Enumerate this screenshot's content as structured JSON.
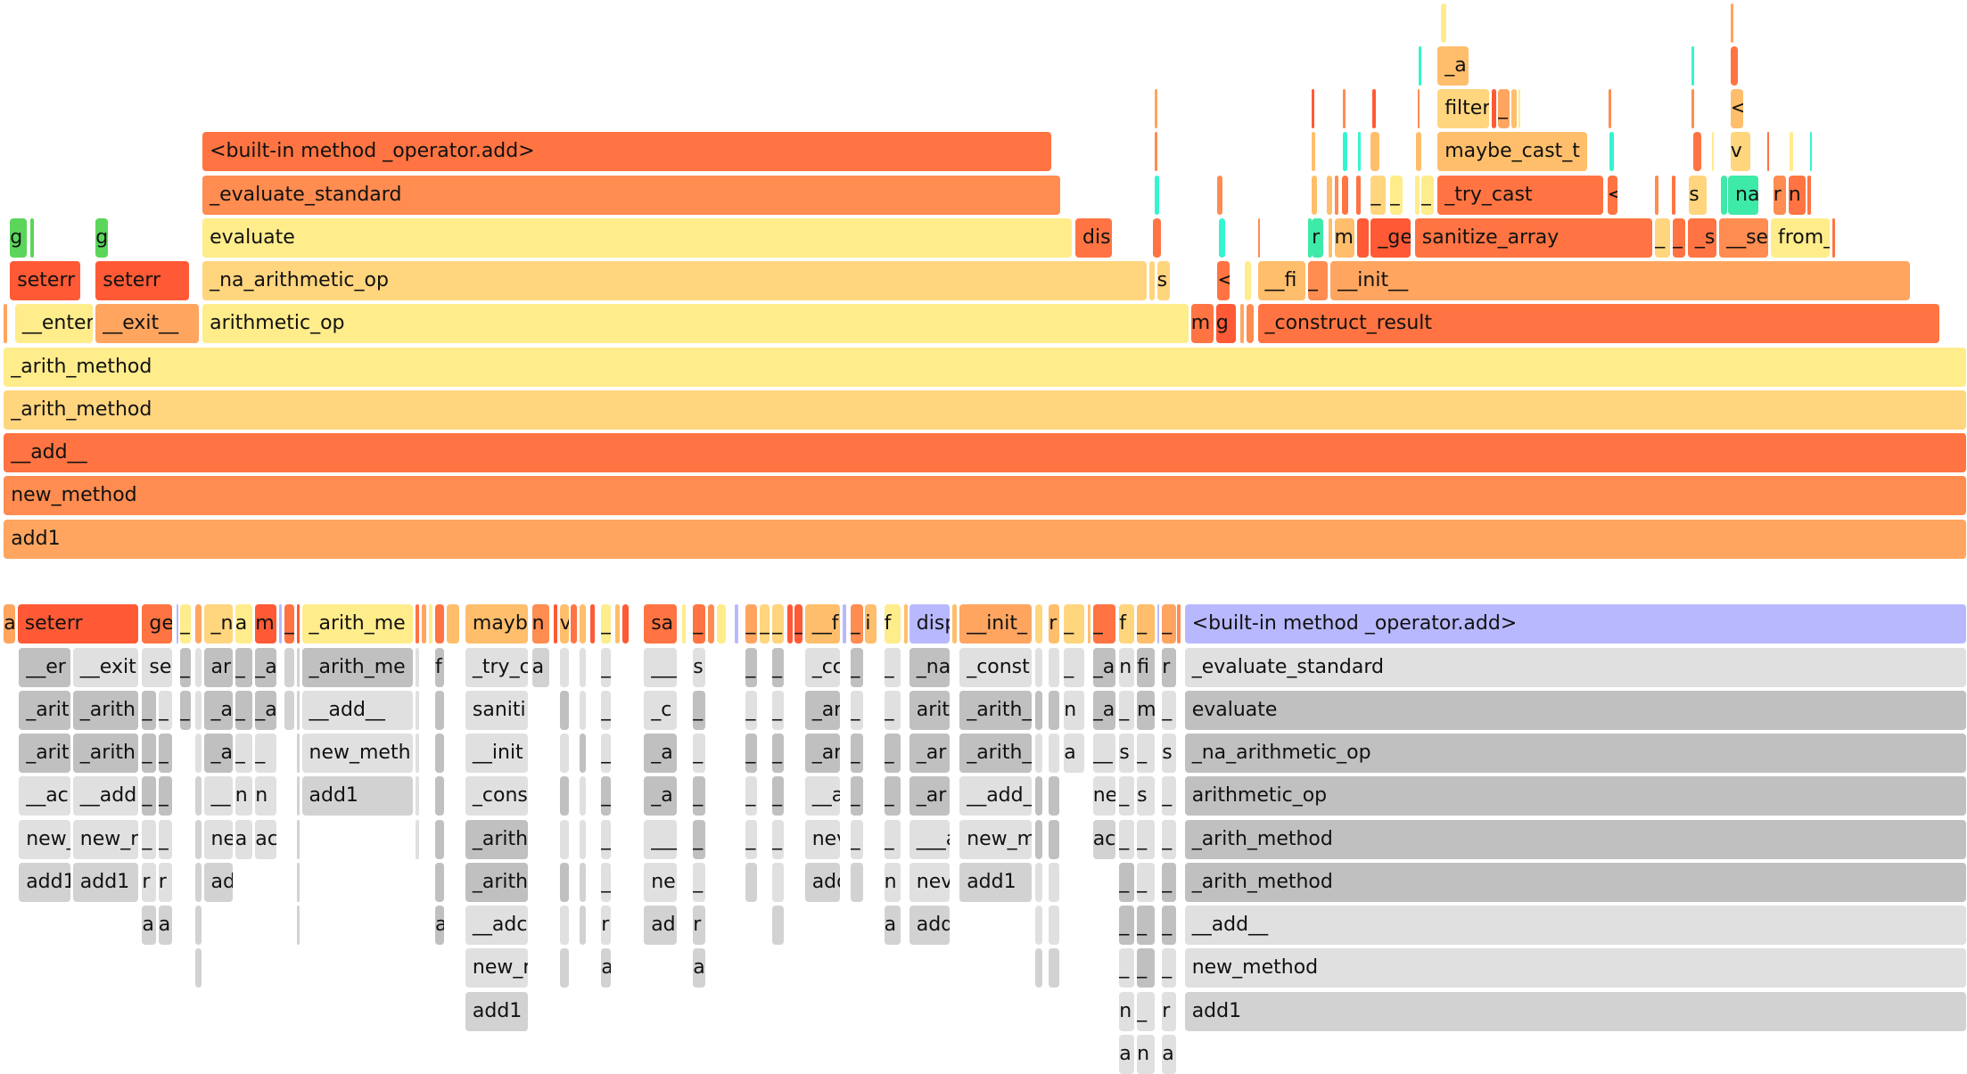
{
  "palette": {
    "Y": "#FFEC8B",
    "Y2": "#FFD57E",
    "O1": "#FFBE6B",
    "O2": "#FFA560",
    "O3": "#FF8C50",
    "O4": "#FF7442",
    "R": "#FF5A35",
    "G": "#5BD65B",
    "C": "#33F5D0",
    "T": "#3EEAA8",
    "P": "#B8B8FF",
    "L": "#E0E0E0",
    "M": "#D2D2D2",
    "D": "#C0C0C0"
  },
  "top_frames": [
    [
      "add1",
      "O2"
    ],
    [
      "new_method",
      "O3"
    ],
    [
      "__add__",
      "O4"
    ],
    [
      "_arith_method",
      "Y2"
    ],
    [
      "_arith_method",
      "Y"
    ],
    [
      "",
      "O2"
    ],
    [
      "__enter__",
      "Y"
    ],
    [
      "__exit__",
      "O2"
    ],
    [
      "arithmetic_op",
      "Y"
    ],
    [
      "m",
      "O4"
    ],
    [
      "g",
      "R"
    ],
    [
      "",
      "O2"
    ],
    [
      "",
      "O3"
    ],
    [
      "_construct_result",
      "O4"
    ],
    [
      "seterr",
      "R"
    ],
    [
      "seterr",
      "R"
    ],
    [
      "_na_arithmetic_op",
      "Y2"
    ],
    [
      "",
      "Y2"
    ],
    [
      "s",
      "Y2"
    ],
    [
      "<",
      "O4"
    ],
    [
      "",
      "Y"
    ],
    [
      "__fi",
      "O1"
    ],
    [
      "_",
      "O3"
    ],
    [
      "__init__",
      "O2"
    ],
    [
      "g",
      "G"
    ],
    [
      "",
      "G"
    ],
    [
      "g",
      "G"
    ],
    [
      "evaluate",
      "Y"
    ],
    [
      "disp",
      "O4"
    ],
    [
      "",
      "O4"
    ],
    [
      "",
      "C"
    ],
    [
      "",
      "O3"
    ],
    [
      "",
      "T"
    ],
    [
      "r",
      "T"
    ],
    [
      "",
      "O1"
    ],
    [
      "m",
      "O1"
    ],
    [
      "",
      "R"
    ],
    [
      "_ge",
      "R"
    ],
    [
      "sanitize_array",
      "O4"
    ],
    [
      "_",
      "Y2"
    ],
    [
      "_",
      "O4"
    ],
    [
      "_s",
      "O4"
    ],
    [
      "__se",
      "O3"
    ],
    [
      "from_",
      "Y"
    ],
    [
      "",
      "O4"
    ],
    [
      "_evaluate_standard",
      "O3"
    ],
    [
      "",
      "C"
    ],
    [
      "",
      "O3"
    ],
    [
      "",
      "O1"
    ],
    [
      "",
      "O1"
    ],
    [
      "",
      "O3"
    ],
    [
      "",
      "O4"
    ],
    [
      "",
      "O4"
    ],
    [
      "_",
      "Y2"
    ],
    [
      "_",
      "Y"
    ],
    [
      "",
      "Y"
    ],
    [
      "_",
      "Y"
    ],
    [
      "_try_cast",
      "O4"
    ],
    [
      "<",
      "O4"
    ],
    [
      "",
      "O3"
    ],
    [
      "",
      "O4"
    ],
    [
      "s",
      "Y2"
    ],
    [
      "",
      "T"
    ],
    [
      "na",
      "T"
    ],
    [
      "r",
      "O3"
    ],
    [
      "n",
      "O4"
    ],
    [
      "",
      "O4"
    ],
    [
      "<built-in method _operator.add>",
      "O4"
    ],
    [
      "",
      "O3"
    ],
    [
      "",
      "O1"
    ],
    [
      "",
      "C"
    ],
    [
      "",
      "C"
    ],
    [
      "",
      "O1"
    ],
    [
      "",
      "O1"
    ],
    [
      "maybe_cast_t",
      "O1"
    ],
    [
      "",
      "C"
    ],
    [
      "",
      "O4"
    ],
    [
      "",
      "Y"
    ],
    [
      "v",
      "Y2"
    ],
    [
      "",
      "O4"
    ],
    [
      "",
      "Y"
    ],
    [
      "",
      "C"
    ],
    [
      "",
      "O2"
    ],
    [
      "",
      "R"
    ],
    [
      "",
      "O3"
    ],
    [
      "",
      "R"
    ],
    [
      "",
      "O3"
    ],
    [
      "filter",
      "Y2"
    ],
    [
      "",
      "R"
    ],
    [
      "_",
      "O2"
    ],
    [
      "",
      "O1"
    ],
    [
      "",
      "Y"
    ],
    [
      "",
      "O3"
    ],
    [
      "",
      "O3"
    ],
    [
      "<",
      "O1"
    ],
    [
      "",
      "C"
    ],
    [
      "_a",
      "O1"
    ],
    [
      "",
      "C"
    ],
    [
      "",
      "O4"
    ],
    [
      "",
      "Y"
    ],
    [
      "",
      "O2"
    ]
  ],
  "bottom_frames": [
    [
      "a",
      "O2"
    ],
    [
      "seterr",
      "R"
    ],
    [
      "ge",
      "O4"
    ],
    [
      "",
      "P"
    ],
    [
      "_",
      "Y"
    ],
    [
      "",
      "O2"
    ],
    [
      "_n",
      "Y2"
    ],
    [
      "a",
      "Y"
    ],
    [
      "m",
      "R"
    ],
    [
      "",
      "P"
    ],
    [
      "_",
      "O4"
    ],
    [
      "",
      "R"
    ],
    [
      "_arith_me",
      "Y"
    ],
    [
      "",
      "O4"
    ],
    [
      "",
      "O2"
    ],
    [
      "",
      "Y"
    ],
    [
      "",
      "O4"
    ],
    [
      "",
      "O1"
    ],
    [
      "mayb",
      "O1"
    ],
    [
      "n",
      "O3"
    ],
    [
      "",
      "R"
    ],
    [
      "v",
      "O1"
    ],
    [
      "",
      "O4"
    ],
    [
      "",
      "O1"
    ],
    [
      "",
      "R"
    ],
    [
      "_",
      "Y"
    ],
    [
      "",
      "O1"
    ],
    [
      "",
      "R"
    ],
    [
      "sa",
      "O4"
    ],
    [
      "",
      "Y"
    ],
    [
      "_",
      "O4"
    ],
    [
      "",
      "O3"
    ],
    [
      "",
      "Y"
    ],
    [
      "",
      "P"
    ],
    [
      "_",
      "O2"
    ],
    [
      "_",
      "Y2"
    ],
    [
      "_",
      "Y2"
    ],
    [
      "",
      "R"
    ],
    [
      "_",
      "R"
    ],
    [
      "__f",
      "O1"
    ],
    [
      "",
      "P"
    ],
    [
      "_",
      "O3"
    ],
    [
      "i",
      "O1"
    ],
    [
      "f",
      "Y"
    ],
    [
      "",
      "O1"
    ],
    [
      "disp",
      "P"
    ],
    [
      "",
      "O1"
    ],
    [
      "__init_",
      "O2"
    ],
    [
      "",
      "Y2"
    ],
    [
      "r",
      "O1"
    ],
    [
      "_",
      "Y2"
    ],
    [
      "",
      "O1"
    ],
    [
      "_",
      "O4"
    ],
    [
      "f",
      "Y2"
    ],
    [
      "_",
      "O1"
    ],
    [
      "",
      "P"
    ],
    [
      "_",
      "O2"
    ],
    [
      "",
      "O3"
    ],
    [
      "<built-in method _operator.add>",
      "P"
    ],
    [
      "__er",
      "D"
    ],
    [
      "_arit",
      "D"
    ],
    [
      "_arit",
      "D"
    ],
    [
      "__ac",
      "L"
    ],
    [
      "new_",
      "L"
    ],
    [
      "add1",
      "M"
    ],
    [
      "__exit",
      "L"
    ],
    [
      "_arith",
      "D"
    ],
    [
      "_arith",
      "D"
    ],
    [
      "__add",
      "L"
    ],
    [
      "new_r",
      "L"
    ],
    [
      "add1",
      "M"
    ],
    [
      "se",
      "L"
    ],
    [
      "_",
      "D"
    ],
    [
      "_",
      "D"
    ],
    [
      "_",
      "D"
    ],
    [
      "_",
      "L"
    ],
    [
      "r",
      "L"
    ],
    [
      "a",
      "M"
    ],
    [
      "_",
      "L"
    ],
    [
      "_",
      "D"
    ],
    [
      "_",
      "D"
    ],
    [
      "_",
      "L"
    ],
    [
      "r",
      "L"
    ],
    [
      "a",
      "M"
    ],
    [
      "_",
      "D"
    ],
    [
      "_",
      "D"
    ],
    [
      "",
      "L"
    ],
    [
      "",
      "L"
    ],
    [
      "",
      "L"
    ],
    [
      "",
      "M"
    ],
    [
      "",
      "M"
    ],
    [
      "",
      "M"
    ],
    [
      "",
      "M"
    ],
    [
      "",
      "M"
    ],
    [
      "ari",
      "D"
    ],
    [
      "_a",
      "D"
    ],
    [
      "_a",
      "D"
    ],
    [
      "__",
      "L"
    ],
    [
      "ne",
      "L"
    ],
    [
      "ad",
      "M"
    ],
    [
      "_",
      "D"
    ],
    [
      "_",
      "D"
    ],
    [
      "_",
      "L"
    ],
    [
      "n",
      "L"
    ],
    [
      "a",
      "L"
    ],
    [
      "_a",
      "D"
    ],
    [
      "_a",
      "D"
    ],
    [
      "_",
      "L"
    ],
    [
      "n",
      "L"
    ],
    [
      "ac",
      "L"
    ],
    [
      "",
      "M"
    ],
    [
      "",
      "M"
    ],
    [
      "_arith_me",
      "D"
    ],
    [
      "__add__",
      "L"
    ],
    [
      "new_meth",
      "L"
    ],
    [
      "add1",
      "M"
    ],
    [
      "",
      "M"
    ],
    [
      "",
      "M"
    ],
    [
      "",
      "M"
    ],
    [
      "",
      "M"
    ],
    [
      "",
      "M"
    ],
    [
      "",
      "M"
    ],
    [
      "",
      "M"
    ],
    [
      "",
      "L"
    ],
    [
      "",
      "L"
    ],
    [
      "",
      "L"
    ],
    [
      "",
      "L"
    ],
    [
      "",
      "L"
    ],
    [
      "f",
      "D"
    ],
    [
      "",
      "D"
    ],
    [
      "",
      "D"
    ],
    [
      "",
      "D"
    ],
    [
      "",
      "D"
    ],
    [
      "",
      "D"
    ],
    [
      "a",
      "D"
    ],
    [
      "_try_c",
      "L"
    ],
    [
      "saniti",
      "L"
    ],
    [
      "__init",
      "L"
    ],
    [
      "_cons",
      "L"
    ],
    [
      "_arith",
      "D"
    ],
    [
      "_arith",
      "D"
    ],
    [
      "__adc",
      "L"
    ],
    [
      "new_r",
      "L"
    ],
    [
      "add1",
      "M"
    ],
    [
      "a",
      "M"
    ],
    [
      "",
      "L"
    ],
    [
      "",
      "D"
    ],
    [
      "",
      "L"
    ],
    [
      "",
      "D"
    ],
    [
      "",
      "L"
    ],
    [
      "",
      "D"
    ],
    [
      "",
      "L"
    ],
    [
      "",
      "M"
    ],
    [
      "",
      "L"
    ],
    [
      "",
      "L"
    ],
    [
      "",
      "D"
    ],
    [
      "",
      "L"
    ],
    [
      "",
      "L"
    ],
    [
      "",
      "M"
    ],
    [
      "",
      "M"
    ],
    [
      "_",
      "L"
    ],
    [
      "_",
      "L"
    ],
    [
      "_",
      "L"
    ],
    [
      "_",
      "D"
    ],
    [
      "_",
      "L"
    ],
    [
      "_",
      "L"
    ],
    [
      "r",
      "L"
    ],
    [
      "a",
      "M"
    ],
    [
      "___",
      "L"
    ],
    [
      "_c",
      "L"
    ],
    [
      "_a",
      "D"
    ],
    [
      "_a",
      "D"
    ],
    [
      "___",
      "L"
    ],
    [
      "ne",
      "L"
    ],
    [
      "ad",
      "M"
    ],
    [
      "s",
      "L"
    ],
    [
      "_",
      "D"
    ],
    [
      "_",
      "L"
    ],
    [
      "_",
      "D"
    ],
    [
      "_",
      "D"
    ],
    [
      "_",
      "L"
    ],
    [
      "r",
      "M"
    ],
    [
      "a",
      "M"
    ],
    [
      "_",
      "D"
    ],
    [
      "_",
      "L"
    ],
    [
      "_",
      "D"
    ],
    [
      "_",
      "L"
    ],
    [
      "_",
      "L"
    ],
    [
      "",
      "M"
    ],
    [
      "_",
      "D"
    ],
    [
      "_",
      "L"
    ],
    [
      "_",
      "D"
    ],
    [
      "_",
      "D"
    ],
    [
      "_",
      "L"
    ],
    [
      "",
      "L"
    ],
    [
      "",
      "M"
    ],
    [
      "_cc",
      "L"
    ],
    [
      "_ar",
      "D"
    ],
    [
      "_ar",
      "D"
    ],
    [
      "__a",
      "L"
    ],
    [
      "nev",
      "L"
    ],
    [
      "add",
      "M"
    ],
    [
      "_",
      "D"
    ],
    [
      "_",
      "L"
    ],
    [
      "_",
      "D"
    ],
    [
      "_",
      "D"
    ],
    [
      "_",
      "L"
    ],
    [
      "",
      "M"
    ],
    [
      "_",
      "L"
    ],
    [
      "_",
      "L"
    ],
    [
      "_",
      "D"
    ],
    [
      "_",
      "D"
    ],
    [
      "_",
      "L"
    ],
    [
      "n",
      "L"
    ],
    [
      "a",
      "M"
    ],
    [
      "_na",
      "D"
    ],
    [
      "arit",
      "D"
    ],
    [
      "_ar",
      "D"
    ],
    [
      "_ar",
      "D"
    ],
    [
      "___a",
      "L"
    ],
    [
      "nev",
      "L"
    ],
    [
      "add",
      "M"
    ],
    [
      "_const",
      "L"
    ],
    [
      "_arith_",
      "D"
    ],
    [
      "_arith_",
      "D"
    ],
    [
      "__add_",
      "L"
    ],
    [
      "new_m",
      "L"
    ],
    [
      "add1",
      "M"
    ],
    [
      "",
      "L"
    ],
    [
      "",
      "D"
    ],
    [
      "",
      "L"
    ],
    [
      "",
      "D"
    ],
    [
      "",
      "D"
    ],
    [
      "",
      "L"
    ],
    [
      "",
      "L"
    ],
    [
      "",
      "M"
    ],
    [
      "",
      "L"
    ],
    [
      "",
      "D"
    ],
    [
      "",
      "L"
    ],
    [
      "",
      "D"
    ],
    [
      "",
      "D"
    ],
    [
      "",
      "L"
    ],
    [
      "",
      "L"
    ],
    [
      "",
      "M"
    ],
    [
      "_",
      "L"
    ],
    [
      "n",
      "L"
    ],
    [
      "a",
      "L"
    ],
    [
      "_a",
      "D"
    ],
    [
      "_a",
      "D"
    ],
    [
      "__",
      "L"
    ],
    [
      "ne",
      "L"
    ],
    [
      "ac",
      "M"
    ],
    [
      "n",
      "L"
    ],
    [
      "_",
      "L"
    ],
    [
      "s",
      "L"
    ],
    [
      "_",
      "L"
    ],
    [
      "_",
      "L"
    ],
    [
      "_",
      "D"
    ],
    [
      "_",
      "D"
    ],
    [
      "_",
      "L"
    ],
    [
      "n",
      "L"
    ],
    [
      "a",
      "L"
    ],
    [
      "fi",
      "D"
    ],
    [
      "m",
      "D"
    ],
    [
      "_",
      "L"
    ],
    [
      "s",
      "L"
    ],
    [
      "_",
      "L"
    ],
    [
      "_",
      "L"
    ],
    [
      "_",
      "D"
    ],
    [
      "_",
      "D"
    ],
    [
      "_",
      "L"
    ],
    [
      "n",
      "L"
    ],
    [
      "r",
      "D"
    ],
    [
      "_",
      "L"
    ],
    [
      "s",
      "L"
    ],
    [
      "_",
      "L"
    ],
    [
      "_",
      "L"
    ],
    [
      "_",
      "D"
    ],
    [
      "_",
      "D"
    ],
    [
      "_",
      "L"
    ],
    [
      "r",
      "L"
    ],
    [
      "a",
      "L"
    ],
    [
      "_evaluate_standard",
      "L"
    ],
    [
      "evaluate",
      "D"
    ],
    [
      "_na_arithmetic_op",
      "D"
    ],
    [
      "arithmetic_op",
      "D"
    ],
    [
      "_arith_method",
      "D"
    ],
    [
      "_arith_method",
      "D"
    ],
    [
      "__add__",
      "L"
    ],
    [
      "new_method",
      "L"
    ],
    [
      "add1",
      "M"
    ]
  ]
}
